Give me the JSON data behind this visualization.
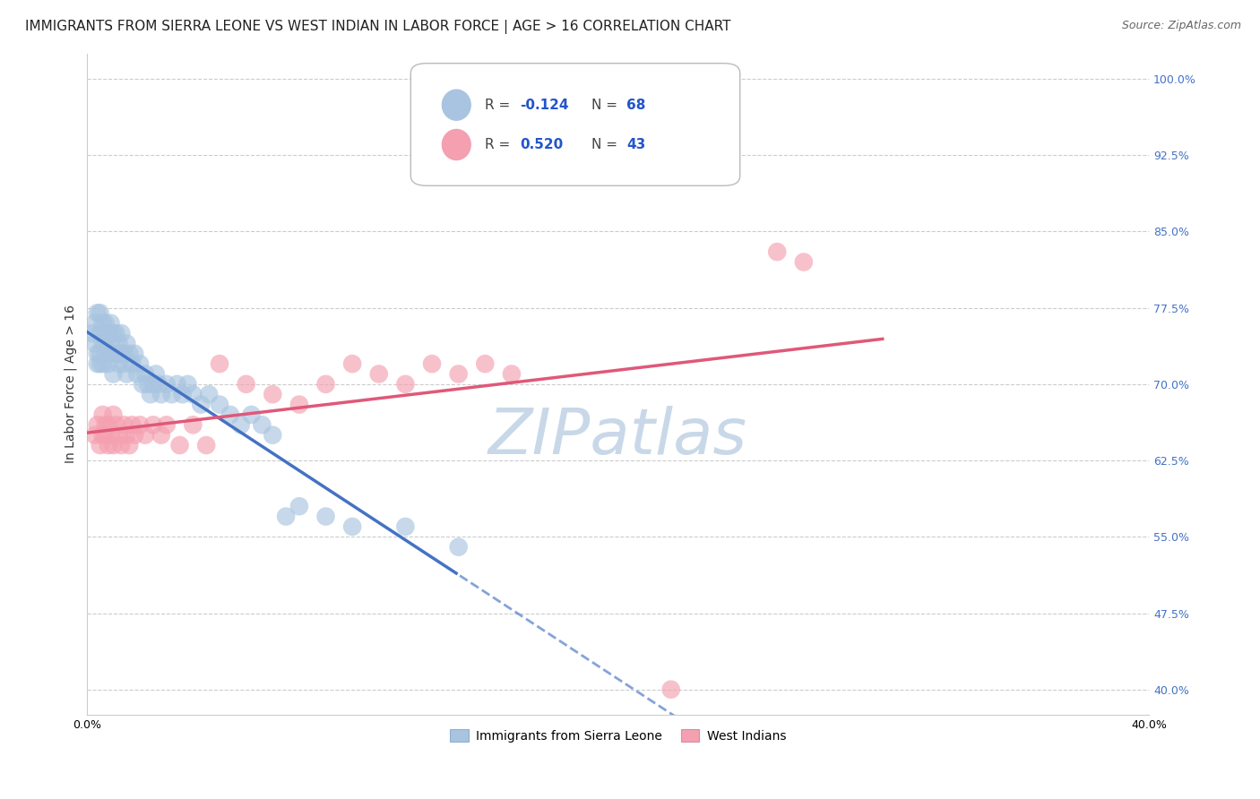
{
  "title": "IMMIGRANTS FROM SIERRA LEONE VS WEST INDIAN IN LABOR FORCE | AGE > 16 CORRELATION CHART",
  "source": "Source: ZipAtlas.com",
  "ylabel": "In Labor Force | Age > 16",
  "xlim": [
    0.0,
    0.4
  ],
  "ylim": [
    0.375,
    1.025
  ],
  "ytick_vals": [
    0.4,
    0.475,
    0.55,
    0.625,
    0.7,
    0.775,
    0.85,
    0.925,
    1.0
  ],
  "ytick_labels": [
    "40.0%",
    "47.5%",
    "55.0%",
    "62.5%",
    "70.0%",
    "77.5%",
    "85.0%",
    "92.5%",
    "100.0%"
  ],
  "xtick_vals": [
    0.0,
    0.05,
    0.1,
    0.15,
    0.2,
    0.25,
    0.3,
    0.35,
    0.4
  ],
  "xtick_labels": [
    "0.0%",
    "",
    "",
    "",
    "",
    "",
    "",
    "",
    "40.0%"
  ],
  "grid_color": "#cccccc",
  "background_color": "#ffffff",
  "sierra_leone_color": "#a8c4e0",
  "west_indians_color": "#f4a0b0",
  "sierra_leone_line_color": "#4472c4",
  "west_indians_line_color": "#e05878",
  "R_sierra": -0.124,
  "N_sierra": 68,
  "R_west": 0.52,
  "N_west": 43,
  "legend_label_sierra": "Immigrants from Sierra Leone",
  "legend_label_west": "West Indians",
  "sierra_leone_x": [
    0.002,
    0.003,
    0.003,
    0.004,
    0.004,
    0.004,
    0.005,
    0.005,
    0.005,
    0.005,
    0.006,
    0.006,
    0.006,
    0.006,
    0.007,
    0.007,
    0.007,
    0.008,
    0.008,
    0.008,
    0.009,
    0.009,
    0.01,
    0.01,
    0.01,
    0.011,
    0.011,
    0.012,
    0.012,
    0.013,
    0.013,
    0.014,
    0.014,
    0.015,
    0.015,
    0.016,
    0.017,
    0.018,
    0.019,
    0.02,
    0.021,
    0.022,
    0.023,
    0.024,
    0.025,
    0.026,
    0.027,
    0.028,
    0.03,
    0.032,
    0.034,
    0.036,
    0.038,
    0.04,
    0.043,
    0.046,
    0.05,
    0.054,
    0.058,
    0.062,
    0.066,
    0.07,
    0.075,
    0.08,
    0.09,
    0.1,
    0.12,
    0.14
  ],
  "sierra_leone_y": [
    0.75,
    0.76,
    0.74,
    0.72,
    0.73,
    0.77,
    0.75,
    0.72,
    0.73,
    0.77,
    0.74,
    0.75,
    0.72,
    0.76,
    0.74,
    0.73,
    0.76,
    0.75,
    0.73,
    0.72,
    0.74,
    0.76,
    0.73,
    0.71,
    0.75,
    0.73,
    0.75,
    0.72,
    0.74,
    0.73,
    0.75,
    0.72,
    0.73,
    0.71,
    0.74,
    0.73,
    0.72,
    0.73,
    0.71,
    0.72,
    0.7,
    0.71,
    0.7,
    0.69,
    0.7,
    0.71,
    0.7,
    0.69,
    0.7,
    0.69,
    0.7,
    0.69,
    0.7,
    0.69,
    0.68,
    0.69,
    0.68,
    0.67,
    0.66,
    0.67,
    0.66,
    0.65,
    0.57,
    0.58,
    0.57,
    0.56,
    0.56,
    0.54
  ],
  "west_indians_x": [
    0.003,
    0.004,
    0.005,
    0.006,
    0.006,
    0.007,
    0.007,
    0.008,
    0.008,
    0.009,
    0.01,
    0.01,
    0.011,
    0.012,
    0.013,
    0.014,
    0.015,
    0.016,
    0.017,
    0.018,
    0.02,
    0.022,
    0.025,
    0.028,
    0.03,
    0.035,
    0.04,
    0.045,
    0.05,
    0.06,
    0.07,
    0.08,
    0.09,
    0.1,
    0.11,
    0.12,
    0.13,
    0.14,
    0.15,
    0.16,
    0.22,
    0.26,
    0.27
  ],
  "west_indians_y": [
    0.65,
    0.66,
    0.64,
    0.65,
    0.67,
    0.66,
    0.65,
    0.64,
    0.66,
    0.65,
    0.64,
    0.67,
    0.66,
    0.65,
    0.64,
    0.66,
    0.65,
    0.64,
    0.66,
    0.65,
    0.66,
    0.65,
    0.66,
    0.65,
    0.66,
    0.64,
    0.66,
    0.64,
    0.72,
    0.7,
    0.69,
    0.68,
    0.7,
    0.72,
    0.71,
    0.7,
    0.72,
    0.71,
    0.72,
    0.71,
    0.4,
    0.83,
    0.82
  ],
  "watermark_text": "ZIPatlas",
  "watermark_color": "#c8d8e8",
  "title_fontsize": 11,
  "axis_label_fontsize": 10,
  "tick_fontsize": 9,
  "source_fontsize": 9
}
